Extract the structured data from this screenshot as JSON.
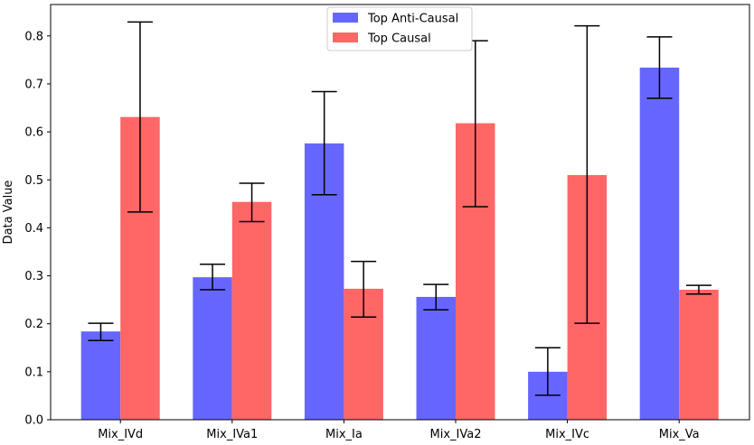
{
  "chart_data": {
    "type": "bar",
    "title": "",
    "xlabel": "",
    "ylabel": "Data Value",
    "ylim": [
      0,
      0.86
    ],
    "yticks": [
      0.0,
      0.1,
      0.2,
      0.3,
      0.4,
      0.5,
      0.6,
      0.7,
      0.8
    ],
    "ytick_labels": [
      "0.0",
      "0.1",
      "0.2",
      "0.3",
      "0.4",
      "0.5",
      "0.6",
      "0.7",
      "0.8"
    ],
    "grid": false,
    "legend_position": "top-center",
    "categories": [
      "Mix_IVd",
      "Mix_IVa1",
      "Mix_Ia",
      "Mix_IVa2",
      "Mix_IVc",
      "Mix_Va"
    ],
    "series": [
      {
        "name": "Top Anti-Causal",
        "color": "#6666ff",
        "values": [
          0.184,
          0.297,
          0.576,
          0.256,
          0.1,
          0.734
        ],
        "err_low": [
          0.165,
          0.271,
          0.469,
          0.229,
          0.051,
          0.67
        ],
        "err_high": [
          0.201,
          0.324,
          0.684,
          0.282,
          0.15,
          0.798
        ]
      },
      {
        "name": "Top Causal",
        "color": "#ff6666",
        "values": [
          0.631,
          0.454,
          0.273,
          0.618,
          0.51,
          0.271
        ],
        "err_low": [
          0.433,
          0.413,
          0.214,
          0.444,
          0.201,
          0.262
        ],
        "err_high": [
          0.829,
          0.493,
          0.33,
          0.79,
          0.821,
          0.28
        ]
      }
    ]
  }
}
